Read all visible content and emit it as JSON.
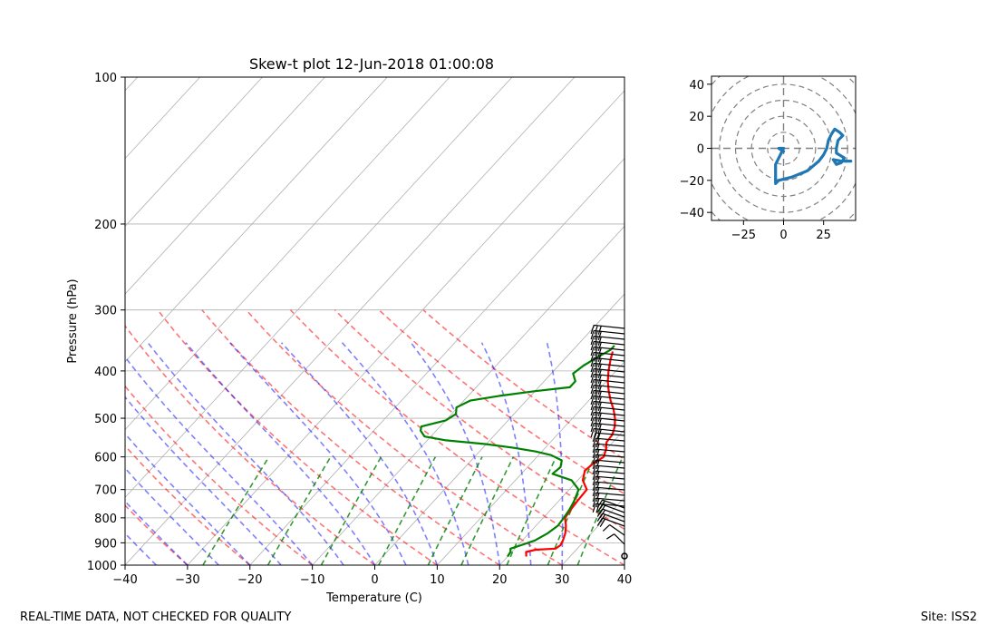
{
  "chart_data": [
    {
      "type": "line",
      "kind": "skew-t",
      "title": "Skew-t plot 12-Jun-2018 01:00:08",
      "xlabel": "Temperature (C)",
      "ylabel": "Pressure (hPa)",
      "xlim": [
        -40,
        40
      ],
      "ylim": [
        1000,
        100
      ],
      "yscale": "log",
      "xticks": [
        -40,
        -30,
        -20,
        -10,
        0,
        10,
        20,
        30,
        40
      ],
      "yticks": [
        100,
        200,
        300,
        400,
        500,
        600,
        700,
        800,
        900,
        1000
      ],
      "grid": true,
      "series": [
        {
          "color": "#ff0000",
          "points": [
            [
              960,
              23.0
            ],
            [
              940,
              22.3
            ],
            [
              930,
              23.5
            ],
            [
              925,
              26.5
            ],
            [
              910,
              26.8
            ],
            [
              890,
              26.5
            ],
            [
              860,
              25.8
            ],
            [
              830,
              24.8
            ],
            [
              800,
              23.5
            ],
            [
              770,
              23.2
            ],
            [
              740,
              23.0
            ],
            [
              700,
              22.8
            ],
            [
              670,
              20.8
            ],
            [
              640,
              19.7
            ],
            [
              620,
              20.0
            ],
            [
              600,
              20.7
            ],
            [
              580,
              20.0
            ],
            [
              560,
              19.0
            ],
            [
              540,
              18.8
            ],
            [
              520,
              18.0
            ],
            [
              500,
              16.8
            ],
            [
              480,
              15.3
            ],
            [
              460,
              13.5
            ],
            [
              440,
              11.8
            ],
            [
              420,
              10.2
            ],
            [
              400,
              8.8
            ],
            [
              380,
              7.5
            ],
            [
              365,
              6.6
            ]
          ]
        },
        {
          "color": "#008000",
          "points": [
            [
              960,
              20.0
            ],
            [
              940,
              19.8
            ],
            [
              925,
              19.3
            ],
            [
              910,
              20.5
            ],
            [
              890,
              22.0
            ],
            [
              860,
              23.0
            ],
            [
              830,
              23.5
            ],
            [
              800,
              23.3
            ],
            [
              770,
              23.0
            ],
            [
              740,
              22.5
            ],
            [
              700,
              21.5
            ],
            [
              670,
              19.0
            ],
            [
              650,
              15.0
            ],
            [
              630,
              15.3
            ],
            [
              610,
              14.5
            ],
            [
              595,
              12.0
            ],
            [
              585,
              9.0
            ],
            [
              575,
              5.0
            ],
            [
              565,
              0.0
            ],
            [
              555,
              -7.0
            ],
            [
              545,
              -11.0
            ],
            [
              530,
              -12.5
            ],
            [
              520,
              -13.0
            ],
            [
              505,
              -10.0
            ],
            [
              490,
              -9.3
            ],
            [
              475,
              -10.2
            ],
            [
              460,
              -9.0
            ],
            [
              450,
              -5.0
            ],
            [
              440,
              0.0
            ],
            [
              432,
              5.0
            ],
            [
              420,
              5.0
            ],
            [
              405,
              3.5
            ],
            [
              390,
              4.0
            ],
            [
              375,
              5.0
            ],
            [
              362,
              6.0
            ],
            [
              355,
              6.0
            ]
          ]
        }
      ]
    },
    {
      "type": "line",
      "kind": "hodograph",
      "xlim": [
        -45,
        45
      ],
      "ylim": [
        -45,
        45
      ],
      "xticks": [
        -25,
        0,
        25
      ],
      "yticks": [
        -40,
        -20,
        0,
        20,
        40
      ],
      "rings": [
        10,
        20,
        30,
        40,
        50,
        60
      ],
      "series": [
        {
          "color": "#1f77b4",
          "points": [
            [
              0,
              -2
            ],
            [
              -3,
              0
            ],
            [
              0,
              0
            ],
            [
              -2,
              -4
            ],
            [
              -5,
              -10
            ],
            [
              -5,
              -22
            ],
            [
              -3,
              -20
            ],
            [
              5,
              -18
            ],
            [
              15,
              -14
            ],
            [
              22,
              -8
            ],
            [
              25,
              -4
            ],
            [
              27,
              0
            ],
            [
              28,
              5
            ],
            [
              30,
              9
            ],
            [
              32,
              12
            ],
            [
              35,
              10
            ],
            [
              37,
              8
            ],
            [
              34,
              5
            ],
            [
              33,
              0
            ],
            [
              33,
              -3
            ],
            [
              38,
              -6
            ],
            [
              36,
              -9
            ],
            [
              33,
              -10
            ],
            [
              31,
              -7
            ],
            [
              36,
              -8
            ],
            [
              42,
              -8
            ]
          ]
        }
      ]
    }
  ],
  "footer": {
    "left_text": "REAL-TIME DATA, NOT CHECKED FOR QUALITY",
    "right_text": "Site: ISS2"
  }
}
